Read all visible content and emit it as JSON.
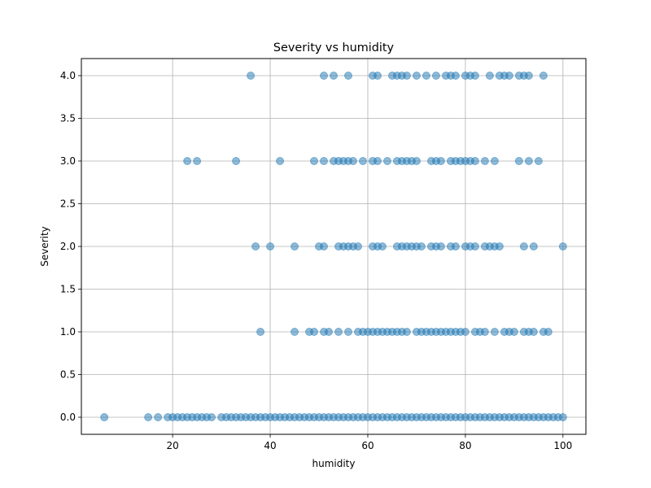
{
  "chart_data": {
    "type": "scatter",
    "title": "Severity vs humidity",
    "xlabel": "humidity",
    "ylabel": "Severity",
    "xlim": [
      1.3,
      104.7
    ],
    "ylim": [
      -0.2,
      4.2
    ],
    "x_ticks": [
      20,
      40,
      60,
      80,
      100
    ],
    "y_ticks": [
      0.0,
      0.5,
      1.0,
      1.5,
      2.0,
      2.5,
      3.0,
      3.5,
      4.0
    ],
    "x_tick_labels": [
      "20",
      "40",
      "60",
      "80",
      "100"
    ],
    "y_tick_labels": [
      "0.0",
      "0.5",
      "1.0",
      "1.5",
      "2.0",
      "2.5",
      "3.0",
      "3.5",
      "4.0"
    ],
    "grid": true,
    "marker_color": "#1f77b4",
    "marker_alpha": 0.5,
    "series": [
      {
        "points": [
          [
            6,
            0
          ],
          [
            15,
            0
          ],
          [
            17,
            0
          ],
          [
            19,
            0
          ],
          [
            20,
            0
          ],
          [
            21,
            0
          ],
          [
            22,
            0
          ],
          [
            23,
            0
          ],
          [
            24,
            0
          ],
          [
            25,
            0
          ],
          [
            26,
            0
          ],
          [
            27,
            0
          ],
          [
            28,
            0
          ],
          [
            30,
            0
          ],
          [
            31,
            0
          ],
          [
            32,
            0
          ],
          [
            33,
            0
          ],
          [
            34,
            0
          ],
          [
            35,
            0
          ],
          [
            36,
            0
          ],
          [
            37,
            0
          ],
          [
            38,
            0
          ],
          [
            39,
            0
          ],
          [
            40,
            0
          ],
          [
            41,
            0
          ],
          [
            42,
            0
          ],
          [
            43,
            0
          ],
          [
            44,
            0
          ],
          [
            45,
            0
          ],
          [
            46,
            0
          ],
          [
            47,
            0
          ],
          [
            48,
            0
          ],
          [
            49,
            0
          ],
          [
            50,
            0
          ],
          [
            51,
            0
          ],
          [
            52,
            0
          ],
          [
            53,
            0
          ],
          [
            54,
            0
          ],
          [
            55,
            0
          ],
          [
            56,
            0
          ],
          [
            57,
            0
          ],
          [
            58,
            0
          ],
          [
            59,
            0
          ],
          [
            60,
            0
          ],
          [
            61,
            0
          ],
          [
            62,
            0
          ],
          [
            63,
            0
          ],
          [
            64,
            0
          ],
          [
            65,
            0
          ],
          [
            66,
            0
          ],
          [
            67,
            0
          ],
          [
            68,
            0
          ],
          [
            69,
            0
          ],
          [
            70,
            0
          ],
          [
            71,
            0
          ],
          [
            72,
            0
          ],
          [
            73,
            0
          ],
          [
            74,
            0
          ],
          [
            75,
            0
          ],
          [
            76,
            0
          ],
          [
            77,
            0
          ],
          [
            78,
            0
          ],
          [
            79,
            0
          ],
          [
            80,
            0
          ],
          [
            81,
            0
          ],
          [
            82,
            0
          ],
          [
            83,
            0
          ],
          [
            84,
            0
          ],
          [
            85,
            0
          ],
          [
            86,
            0
          ],
          [
            87,
            0
          ],
          [
            88,
            0
          ],
          [
            89,
            0
          ],
          [
            90,
            0
          ],
          [
            91,
            0
          ],
          [
            92,
            0
          ],
          [
            93,
            0
          ],
          [
            94,
            0
          ],
          [
            95,
            0
          ],
          [
            96,
            0
          ],
          [
            97,
            0
          ],
          [
            98,
            0
          ],
          [
            99,
            0
          ],
          [
            100,
            0
          ],
          [
            38,
            1
          ],
          [
            45,
            1
          ],
          [
            48,
            1
          ],
          [
            49,
            1
          ],
          [
            51,
            1
          ],
          [
            52,
            1
          ],
          [
            54,
            1
          ],
          [
            56,
            1
          ],
          [
            58,
            1
          ],
          [
            59,
            1
          ],
          [
            60,
            1
          ],
          [
            61,
            1
          ],
          [
            62,
            1
          ],
          [
            63,
            1
          ],
          [
            64,
            1
          ],
          [
            65,
            1
          ],
          [
            66,
            1
          ],
          [
            67,
            1
          ],
          [
            68,
            1
          ],
          [
            70,
            1
          ],
          [
            71,
            1
          ],
          [
            72,
            1
          ],
          [
            73,
            1
          ],
          [
            74,
            1
          ],
          [
            75,
            1
          ],
          [
            76,
            1
          ],
          [
            77,
            1
          ],
          [
            78,
            1
          ],
          [
            79,
            1
          ],
          [
            80,
            1
          ],
          [
            82,
            1
          ],
          [
            83,
            1
          ],
          [
            84,
            1
          ],
          [
            86,
            1
          ],
          [
            88,
            1
          ],
          [
            89,
            1
          ],
          [
            90,
            1
          ],
          [
            92,
            1
          ],
          [
            93,
            1
          ],
          [
            94,
            1
          ],
          [
            96,
            1
          ],
          [
            97,
            1
          ],
          [
            37,
            2
          ],
          [
            40,
            2
          ],
          [
            45,
            2
          ],
          [
            50,
            2
          ],
          [
            51,
            2
          ],
          [
            54,
            2
          ],
          [
            55,
            2
          ],
          [
            56,
            2
          ],
          [
            57,
            2
          ],
          [
            58,
            2
          ],
          [
            61,
            2
          ],
          [
            62,
            2
          ],
          [
            63,
            2
          ],
          [
            66,
            2
          ],
          [
            67,
            2
          ],
          [
            68,
            2
          ],
          [
            69,
            2
          ],
          [
            70,
            2
          ],
          [
            71,
            2
          ],
          [
            73,
            2
          ],
          [
            74,
            2
          ],
          [
            75,
            2
          ],
          [
            77,
            2
          ],
          [
            78,
            2
          ],
          [
            80,
            2
          ],
          [
            81,
            2
          ],
          [
            82,
            2
          ],
          [
            84,
            2
          ],
          [
            85,
            2
          ],
          [
            86,
            2
          ],
          [
            87,
            2
          ],
          [
            92,
            2
          ],
          [
            94,
            2
          ],
          [
            100,
            2
          ],
          [
            23,
            3
          ],
          [
            25,
            3
          ],
          [
            33,
            3
          ],
          [
            42,
            3
          ],
          [
            49,
            3
          ],
          [
            51,
            3
          ],
          [
            53,
            3
          ],
          [
            54,
            3
          ],
          [
            55,
            3
          ],
          [
            56,
            3
          ],
          [
            57,
            3
          ],
          [
            59,
            3
          ],
          [
            61,
            3
          ],
          [
            62,
            3
          ],
          [
            64,
            3
          ],
          [
            66,
            3
          ],
          [
            67,
            3
          ],
          [
            68,
            3
          ],
          [
            69,
            3
          ],
          [
            70,
            3
          ],
          [
            73,
            3
          ],
          [
            74,
            3
          ],
          [
            75,
            3
          ],
          [
            77,
            3
          ],
          [
            78,
            3
          ],
          [
            79,
            3
          ],
          [
            80,
            3
          ],
          [
            81,
            3
          ],
          [
            82,
            3
          ],
          [
            84,
            3
          ],
          [
            86,
            3
          ],
          [
            91,
            3
          ],
          [
            93,
            3
          ],
          [
            95,
            3
          ],
          [
            36,
            4
          ],
          [
            51,
            4
          ],
          [
            53,
            4
          ],
          [
            56,
            4
          ],
          [
            61,
            4
          ],
          [
            62,
            4
          ],
          [
            65,
            4
          ],
          [
            66,
            4
          ],
          [
            67,
            4
          ],
          [
            68,
            4
          ],
          [
            70,
            4
          ],
          [
            72,
            4
          ],
          [
            74,
            4
          ],
          [
            76,
            4
          ],
          [
            77,
            4
          ],
          [
            78,
            4
          ],
          [
            80,
            4
          ],
          [
            81,
            4
          ],
          [
            82,
            4
          ],
          [
            85,
            4
          ],
          [
            87,
            4
          ],
          [
            88,
            4
          ],
          [
            89,
            4
          ],
          [
            91,
            4
          ],
          [
            92,
            4
          ],
          [
            93,
            4
          ],
          [
            96,
            4
          ]
        ]
      }
    ]
  }
}
